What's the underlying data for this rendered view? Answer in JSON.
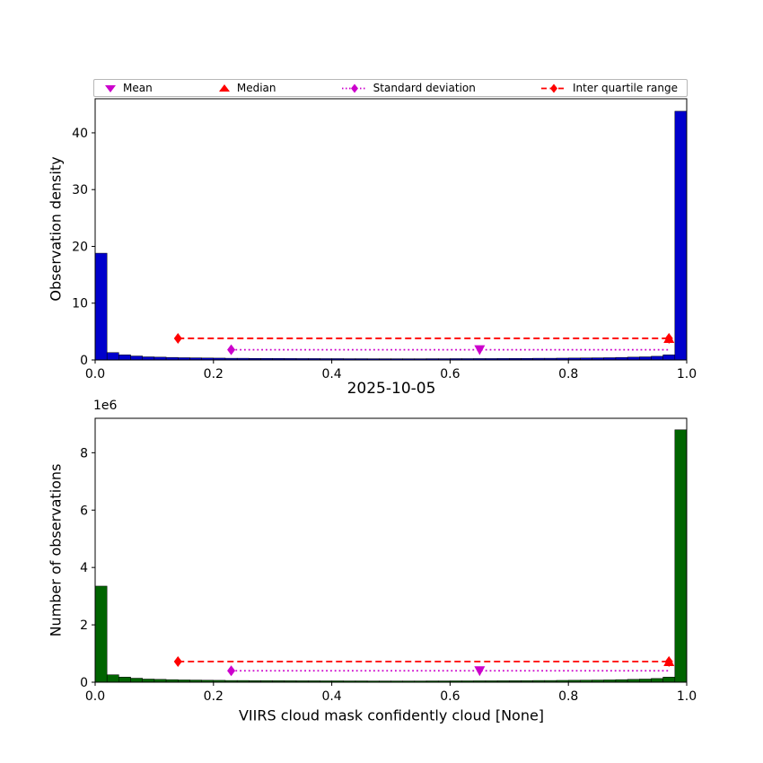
{
  "figure": {
    "title_between": "2025-10-05",
    "xlabel": "VIIRS cloud mask confidently cloud [None]",
    "background": "#ffffff",
    "legend": {
      "items": [
        {
          "label": "Mean",
          "marker": "triangle-down",
          "color": "#cc00cc"
        },
        {
          "label": "Median",
          "marker": "triangle-up",
          "color": "#ff0000"
        },
        {
          "label": "Standard deviation",
          "marker": "diamond-dotted-line",
          "color": "#cc00cc"
        },
        {
          "label": "Inter quartile range",
          "marker": "diamond-dashed-line",
          "color": "#ff0000"
        }
      ]
    }
  },
  "chart_data": [
    {
      "type": "bar",
      "panel": "top",
      "title": "",
      "xlabel": "",
      "ylabel": "Observation density",
      "bar_color": "#0000cc",
      "xlim": [
        0,
        1
      ],
      "ylim": [
        0,
        46
      ],
      "xtick_values": [
        0.0,
        0.2,
        0.4,
        0.6,
        0.8,
        1.0
      ],
      "xtick_labels": [
        "0.0",
        "0.2",
        "0.4",
        "0.6",
        "0.8",
        "1.0"
      ],
      "ytick_values": [
        0,
        10,
        20,
        30,
        40
      ],
      "ytick_labels": [
        "0",
        "10",
        "20",
        "30",
        "40"
      ],
      "bin_start": 0,
      "bin_width": 0.02,
      "values": [
        18.8,
        1.3,
        0.9,
        0.7,
        0.55,
        0.5,
        0.45,
        0.4,
        0.38,
        0.35,
        0.33,
        0.3,
        0.3,
        0.28,
        0.28,
        0.27,
        0.26,
        0.25,
        0.25,
        0.24,
        0.24,
        0.23,
        0.23,
        0.22,
        0.22,
        0.22,
        0.22,
        0.22,
        0.23,
        0.23,
        0.24,
        0.24,
        0.25,
        0.25,
        0.26,
        0.27,
        0.28,
        0.3,
        0.3,
        0.32,
        0.34,
        0.36,
        0.38,
        0.4,
        0.45,
        0.5,
        0.55,
        0.65,
        0.9,
        43.8
      ],
      "overlays": [
        {
          "kind": "line",
          "name": "inter-quartile-range-line",
          "x1": 0.14,
          "x2": 0.97,
          "y": 3.8,
          "color": "#ff0000",
          "dash": "dashed"
        },
        {
          "kind": "marker",
          "name": "iqr-left-cap",
          "shape": "diamond",
          "x": 0.14,
          "y": 3.8,
          "color": "#ff0000"
        },
        {
          "kind": "marker",
          "name": "iqr-right-cap",
          "shape": "diamond",
          "x": 0.97,
          "y": 3.8,
          "color": "#ff0000"
        },
        {
          "kind": "line",
          "name": "standard-deviation-line",
          "x1": 0.23,
          "x2": 0.97,
          "y": 1.8,
          "color": "#cc00cc",
          "dash": "dotted"
        },
        {
          "kind": "marker",
          "name": "std-cap",
          "shape": "diamond",
          "x": 0.23,
          "y": 1.8,
          "color": "#cc00cc"
        },
        {
          "kind": "marker",
          "name": "mean-marker",
          "shape": "triangle-down",
          "x": 0.65,
          "y": 1.8,
          "color": "#cc00cc"
        },
        {
          "kind": "marker",
          "name": "median-marker",
          "shape": "triangle-up",
          "x": 0.97,
          "y": 3.8,
          "color": "#ff0000"
        }
      ]
    },
    {
      "type": "bar",
      "panel": "bottom",
      "title": "2025-10-05",
      "xlabel": "VIIRS cloud mask confidently cloud [None]",
      "ylabel": "Number of observations",
      "offset_text": "1e6",
      "y_unit": 1000000,
      "bar_color": "#006400",
      "xlim": [
        0,
        1
      ],
      "ylim": [
        0,
        9.2
      ],
      "xtick_values": [
        0.0,
        0.2,
        0.4,
        0.6,
        0.8,
        1.0
      ],
      "xtick_labels": [
        "0.0",
        "0.2",
        "0.4",
        "0.6",
        "0.8",
        "1.0"
      ],
      "ytick_values": [
        0,
        2,
        4,
        6,
        8
      ],
      "ytick_labels": [
        "0",
        "2",
        "4",
        "6",
        "8"
      ],
      "bin_start": 0,
      "bin_width": 0.02,
      "values": [
        3.35,
        0.26,
        0.18,
        0.14,
        0.11,
        0.1,
        0.09,
        0.08,
        0.076,
        0.07,
        0.066,
        0.06,
        0.06,
        0.056,
        0.056,
        0.054,
        0.052,
        0.05,
        0.05,
        0.048,
        0.048,
        0.046,
        0.046,
        0.044,
        0.044,
        0.044,
        0.044,
        0.044,
        0.046,
        0.046,
        0.048,
        0.048,
        0.05,
        0.05,
        0.052,
        0.054,
        0.056,
        0.06,
        0.06,
        0.064,
        0.068,
        0.072,
        0.076,
        0.08,
        0.09,
        0.1,
        0.11,
        0.13,
        0.18,
        8.8
      ],
      "overlays": [
        {
          "kind": "line",
          "name": "inter-quartile-range-line",
          "x1": 0.14,
          "x2": 0.97,
          "y": 0.72,
          "color": "#ff0000",
          "dash": "dashed"
        },
        {
          "kind": "marker",
          "name": "iqr-left-cap",
          "shape": "diamond",
          "x": 0.14,
          "y": 0.72,
          "color": "#ff0000"
        },
        {
          "kind": "marker",
          "name": "iqr-right-cap",
          "shape": "diamond",
          "x": 0.97,
          "y": 0.72,
          "color": "#ff0000"
        },
        {
          "kind": "line",
          "name": "standard-deviation-line",
          "x1": 0.23,
          "x2": 0.97,
          "y": 0.4,
          "color": "#cc00cc",
          "dash": "dotted"
        },
        {
          "kind": "marker",
          "name": "std-cap",
          "shape": "diamond",
          "x": 0.23,
          "y": 0.4,
          "color": "#cc00cc"
        },
        {
          "kind": "marker",
          "name": "mean-marker",
          "shape": "triangle-down",
          "x": 0.65,
          "y": 0.4,
          "color": "#cc00cc"
        },
        {
          "kind": "marker",
          "name": "median-marker",
          "shape": "triangle-up",
          "x": 0.97,
          "y": 0.72,
          "color": "#ff0000"
        }
      ]
    }
  ]
}
